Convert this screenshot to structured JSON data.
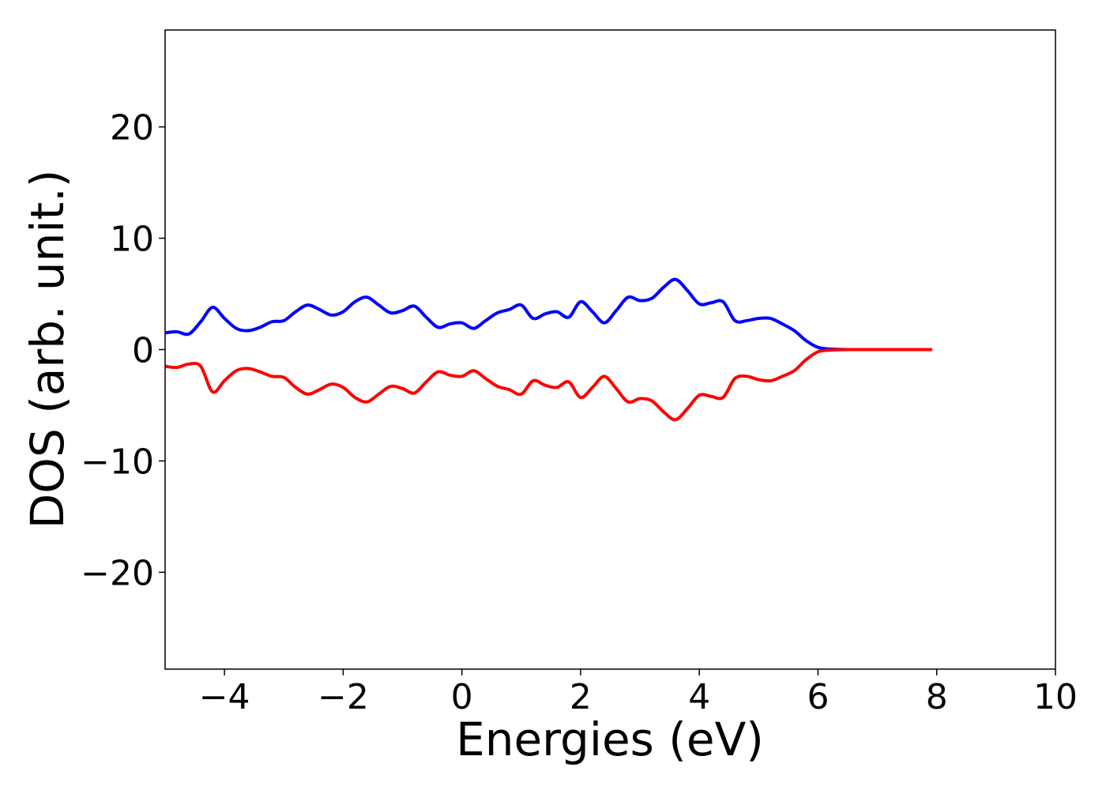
{
  "chart_data": {
    "type": "line",
    "title": "",
    "xlabel": "Energies (eV)",
    "ylabel": "DOS (arb. unit.)",
    "xlim": [
      -5,
      10
    ],
    "ylim": [
      -28.7,
      28.7
    ],
    "xticks": [
      -4,
      -2,
      0,
      2,
      4,
      6,
      8,
      10
    ],
    "xtick_labels": [
      "−4",
      "−2",
      "0",
      "2",
      "4",
      "6",
      "8",
      "10"
    ],
    "yticks": [
      -20,
      -10,
      0,
      10,
      20
    ],
    "ytick_labels": [
      "−20",
      "−10",
      "0",
      "10",
      "20"
    ],
    "grid": false,
    "legend": "none",
    "x": [
      -5.0,
      -4.8,
      -4.6,
      -4.4,
      -4.2,
      -4.0,
      -3.8,
      -3.6,
      -3.4,
      -3.2,
      -3.0,
      -2.8,
      -2.6,
      -2.4,
      -2.2,
      -2.0,
      -1.8,
      -1.6,
      -1.4,
      -1.2,
      -1.0,
      -0.8,
      -0.6,
      -0.4,
      -0.2,
      0.0,
      0.2,
      0.4,
      0.6,
      0.8,
      1.0,
      1.2,
      1.4,
      1.6,
      1.8,
      2.0,
      2.2,
      2.4,
      2.6,
      2.8,
      3.0,
      3.2,
      3.4,
      3.6,
      3.8,
      4.0,
      4.2,
      4.4,
      4.6,
      4.8,
      5.0,
      5.2,
      5.4,
      5.6,
      5.8,
      6.0,
      6.2,
      6.5,
      7.0,
      7.5,
      7.9
    ],
    "series": [
      {
        "color": "#0000ff",
        "values": [
          1.5,
          1.6,
          1.4,
          2.5,
          3.8,
          2.8,
          1.9,
          1.7,
          2.0,
          2.5,
          2.6,
          3.4,
          4.0,
          3.6,
          3.1,
          3.4,
          4.3,
          4.7,
          4.0,
          3.3,
          3.5,
          3.9,
          2.9,
          2.0,
          2.3,
          2.4,
          1.9,
          2.6,
          3.3,
          3.6,
          4.0,
          2.8,
          3.2,
          3.4,
          2.9,
          4.3,
          3.4,
          2.4,
          3.5,
          4.7,
          4.4,
          4.6,
          5.6,
          6.3,
          5.3,
          4.1,
          4.2,
          4.3,
          2.6,
          2.6,
          2.8,
          2.8,
          2.3,
          1.7,
          0.8,
          0.2,
          0.05,
          0.0,
          0.0,
          0.0,
          0.0
        ]
      },
      {
        "color": "#ff0000",
        "values": [
          -1.5,
          -1.6,
          -1.3,
          -1.5,
          -3.8,
          -2.8,
          -1.9,
          -1.7,
          -2.0,
          -2.4,
          -2.5,
          -3.4,
          -4.0,
          -3.6,
          -3.1,
          -3.4,
          -4.3,
          -4.7,
          -4.0,
          -3.3,
          -3.5,
          -3.9,
          -2.9,
          -2.0,
          -2.3,
          -2.4,
          -1.9,
          -2.6,
          -3.3,
          -3.6,
          -4.0,
          -2.8,
          -3.2,
          -3.4,
          -2.9,
          -4.3,
          -3.4,
          -2.4,
          -3.5,
          -4.7,
          -4.4,
          -4.6,
          -5.6,
          -6.3,
          -5.3,
          -4.1,
          -4.2,
          -4.3,
          -2.6,
          -2.4,
          -2.7,
          -2.8,
          -2.4,
          -1.9,
          -0.9,
          -0.2,
          -0.05,
          0.0,
          0.0,
          0.0,
          0.0
        ]
      }
    ]
  }
}
